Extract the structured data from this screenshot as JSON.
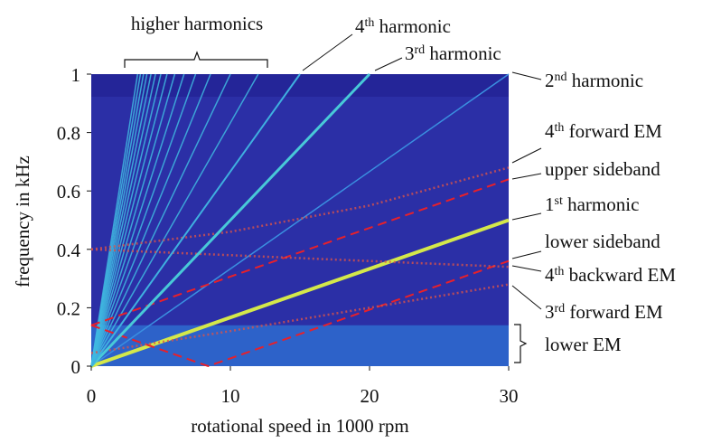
{
  "chart_data": {
    "type": "line",
    "xlabel": "rotational speed in 1000 rpm",
    "ylabel": "frequency in kHz",
    "xlim": [
      0,
      30
    ],
    "ylim": [
      0,
      1
    ],
    "xticks": [
      0,
      10,
      20,
      30
    ],
    "yticks": [
      0,
      0.2,
      0.4,
      0.6,
      0.8,
      1
    ],
    "background": "#2b2fa6",
    "series": [
      {
        "name_parts": [
          "2",
          "nd",
          " harmonic"
        ],
        "color": "#3a8fe0",
        "style": "solid",
        "width": 1.5,
        "x": [
          0,
          30
        ],
        "values": [
          0,
          1
        ]
      },
      {
        "name_parts": [
          "4",
          "th",
          " forward EM"
        ],
        "color": "#d9534a",
        "style": "dotted",
        "width": 2.5,
        "x": [
          0,
          10,
          20,
          30
        ],
        "values": [
          0.4,
          0.46,
          0.55,
          0.68
        ]
      },
      {
        "name_parts": [
          "upper sideband"
        ],
        "color": "#e8202a",
        "style": "dashed",
        "width": 2,
        "x": [
          0,
          30
        ],
        "values": [
          0.14,
          0.64
        ]
      },
      {
        "name_parts": [
          "1",
          "st",
          " harmonic"
        ],
        "color": "#d4e84a",
        "style": "solid",
        "width": 4,
        "x": [
          0,
          30
        ],
        "values": [
          0,
          0.5
        ]
      },
      {
        "name_parts": [
          "lower sideband"
        ],
        "color": "#e8202a",
        "style": "dashed",
        "width": 2,
        "x": [
          0,
          8.4,
          30
        ],
        "values": [
          0.14,
          0,
          0.36
        ]
      },
      {
        "name_parts": [
          "4",
          "th",
          " backward EM"
        ],
        "color": "#d9534a",
        "style": "dotted",
        "width": 2.5,
        "x": [
          0,
          30
        ],
        "values": [
          0.4,
          0.34
        ]
      },
      {
        "name_parts": [
          "3",
          "rd",
          " forward EM"
        ],
        "color": "#d9534a",
        "style": "dotted",
        "width": 2.5,
        "x": [
          0,
          10,
          20,
          30
        ],
        "values": [
          0.045,
          0.12,
          0.2,
          0.28
        ]
      },
      {
        "name_parts": [
          "3",
          "rd",
          " harmonic"
        ],
        "color": "#48c9d8",
        "style": "solid",
        "width": 3,
        "x": [
          0,
          20
        ],
        "values": [
          0,
          1
        ]
      },
      {
        "name_parts": [
          "4",
          "th",
          " harmonic"
        ],
        "color": "#3fb0e0",
        "style": "solid",
        "width": 2,
        "x": [
          0,
          15
        ],
        "values": [
          0,
          1
        ]
      }
    ],
    "lower_em": {
      "name_parts": [
        "lower EM"
      ],
      "color": "#2f78d8",
      "range": [
        0,
        0.14
      ]
    },
    "higher_harmonics": {
      "label": "higher harmonics",
      "color": "#3fb8e0",
      "series": [
        {
          "x": [
            0,
            12
          ],
          "values": [
            0,
            1
          ]
        },
        {
          "x": [
            0,
            10
          ],
          "values": [
            0,
            1
          ]
        },
        {
          "x": [
            0,
            8.57
          ],
          "values": [
            0,
            1
          ]
        },
        {
          "x": [
            0,
            7.5
          ],
          "values": [
            0,
            1
          ]
        },
        {
          "x": [
            0,
            6.67
          ],
          "values": [
            0,
            1
          ]
        },
        {
          "x": [
            0,
            6
          ],
          "values": [
            0,
            1
          ]
        },
        {
          "x": [
            0,
            5.45
          ],
          "values": [
            0,
            1
          ]
        },
        {
          "x": [
            0,
            5
          ],
          "values": [
            0,
            1
          ]
        },
        {
          "x": [
            0,
            4.62
          ],
          "values": [
            0,
            1
          ]
        },
        {
          "x": [
            0,
            4.29
          ],
          "values": [
            0,
            1
          ]
        },
        {
          "x": [
            0,
            4
          ],
          "values": [
            0,
            1
          ]
        },
        {
          "x": [
            0,
            3.75
          ],
          "values": [
            0,
            1
          ]
        },
        {
          "x": [
            0,
            3.53
          ],
          "values": [
            0,
            1
          ]
        },
        {
          "x": [
            0,
            3.33
          ],
          "values": [
            0,
            1
          ]
        }
      ]
    }
  }
}
